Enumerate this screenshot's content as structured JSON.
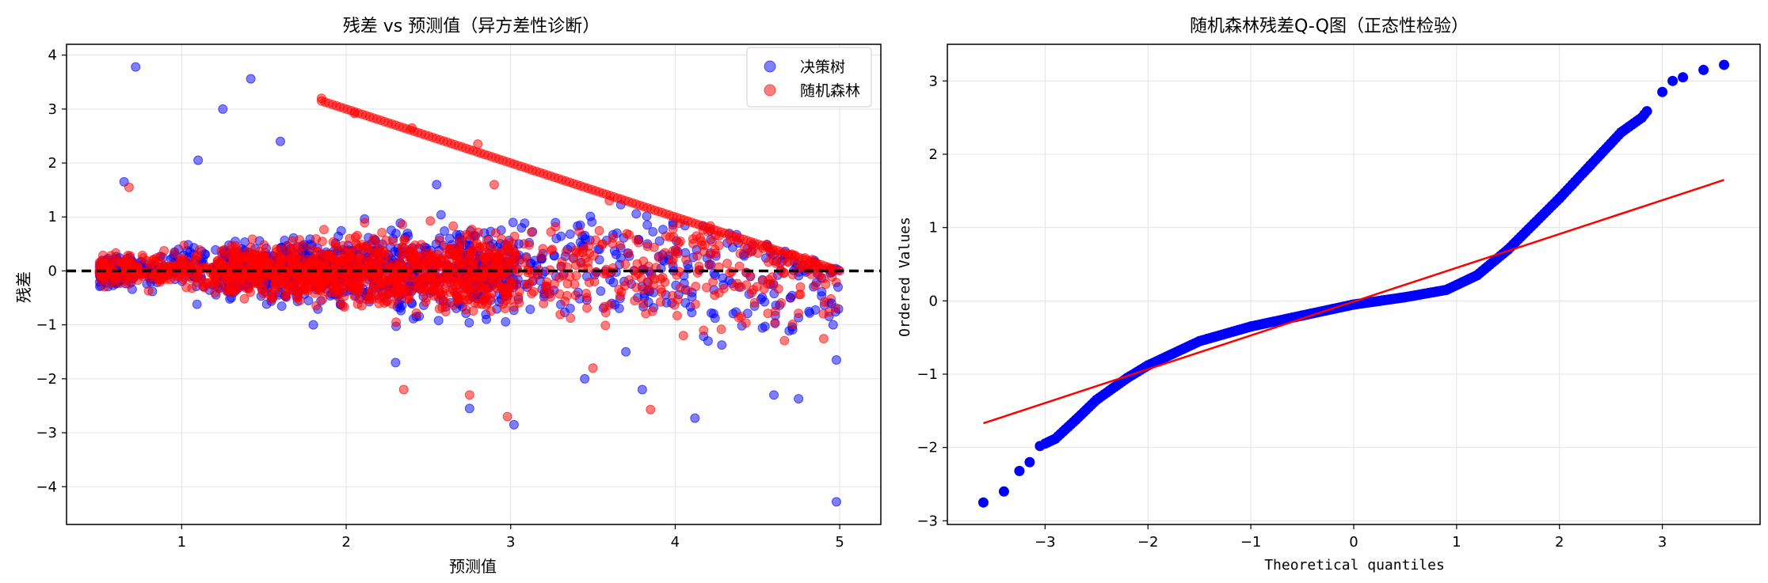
{
  "chart_data": [
    {
      "type": "scatter",
      "title": "残差 vs 预测值（异方差性诊断）",
      "xlabel": "预测值",
      "ylabel": "残差",
      "xlim": [
        0.3,
        5.25
      ],
      "ylim": [
        -4.7,
        4.2
      ],
      "x_ticks": [
        "1",
        "2",
        "3",
        "4",
        "5"
      ],
      "y_ticks": [
        "−4",
        "−3",
        "−2",
        "−1",
        "0",
        "1",
        "2",
        "3",
        "4"
      ],
      "grid": true,
      "reference_line": {
        "y": 0,
        "style": "dashed",
        "color": "#000000"
      },
      "legend_position": "top-right",
      "series": [
        {
          "name": "决策树",
          "color": "#0000ff",
          "points": [
            [
              0.72,
              3.78
            ],
            [
              1.42,
              3.56
            ],
            [
              1.25,
              3.0
            ],
            [
              1.6,
              2.4
            ],
            [
              1.1,
              2.05
            ],
            [
              2.55,
              1.6
            ],
            [
              0.65,
              1.65
            ],
            [
              3.05,
              0.5
            ],
            [
              2.3,
              -1.7
            ],
            [
              1.8,
              -1.0
            ],
            [
              3.02,
              -2.85
            ],
            [
              2.75,
              -2.55
            ],
            [
              3.45,
              -2.0
            ],
            [
              3.8,
              -2.2
            ],
            [
              4.12,
              -2.73
            ],
            [
              4.6,
              -2.3
            ],
            [
              4.75,
              -2.37
            ],
            [
              4.98,
              -4.28
            ],
            [
              4.98,
              -1.65
            ],
            [
              4.96,
              -1.0
            ],
            [
              4.99,
              -0.3
            ],
            [
              4.95,
              -0.6
            ],
            [
              4.7,
              -0.5
            ],
            [
              4.2,
              -1.3
            ],
            [
              3.7,
              -1.5
            ]
          ]
        },
        {
          "name": "随机森林",
          "color": "#ff0000",
          "points": [
            [
              1.85,
              3.2
            ],
            [
              2.05,
              2.92
            ],
            [
              2.4,
              2.65
            ],
            [
              2.8,
              2.35
            ],
            [
              0.68,
              1.55
            ],
            [
              2.35,
              -2.2
            ],
            [
              2.75,
              -2.3
            ],
            [
              2.98,
              -2.7
            ],
            [
              3.85,
              -2.57
            ],
            [
              4.05,
              -1.2
            ],
            [
              3.5,
              -1.8
            ],
            [
              1.7,
              -0.5
            ],
            [
              2.9,
              1.6
            ],
            [
              3.6,
              1.3
            ],
            [
              4.4,
              -0.3
            ]
          ]
        }
      ],
      "boundary_series": [
        {
          "name": "随机森林",
          "from": [
            1.85,
            3.2
          ],
          "to": [
            5.0,
            0.0
          ]
        }
      ]
    },
    {
      "type": "line",
      "subtype": "qq-plot",
      "title": "随机森林残差Q-Q图（正态性检验）",
      "xlabel": "Theoretical quantiles",
      "ylabel": "Ordered Values",
      "xlim": [
        -3.95,
        3.95
      ],
      "ylim": [
        -3.05,
        3.5
      ],
      "x_ticks": [
        "−3",
        "−2",
        "−1",
        "0",
        "1",
        "2",
        "3"
      ],
      "y_ticks": [
        "−3",
        "−2",
        "−1",
        "0",
        "1",
        "2",
        "3"
      ],
      "grid": true,
      "series": [
        {
          "name": "Ordered Values",
          "color": "#0000ff",
          "points": [
            [
              -3.6,
              -2.75
            ],
            [
              -3.4,
              -2.6
            ],
            [
              -3.25,
              -2.32
            ],
            [
              -3.15,
              -2.2
            ],
            [
              -3.05,
              -1.98
            ],
            [
              -2.9,
              -1.88
            ],
            [
              -2.7,
              -1.62
            ],
            [
              -2.5,
              -1.35
            ],
            [
              -2.2,
              -1.05
            ],
            [
              -2.0,
              -0.88
            ],
            [
              -1.5,
              -0.55
            ],
            [
              -1.0,
              -0.35
            ],
            [
              -0.5,
              -0.2
            ],
            [
              0.0,
              -0.05
            ],
            [
              0.5,
              0.05
            ],
            [
              0.9,
              0.15
            ],
            [
              1.2,
              0.35
            ],
            [
              1.5,
              0.7
            ],
            [
              1.75,
              1.05
            ],
            [
              2.0,
              1.4
            ],
            [
              2.3,
              1.85
            ],
            [
              2.6,
              2.3
            ],
            [
              2.8,
              2.5
            ],
            [
              3.0,
              2.85
            ],
            [
              3.1,
              3.0
            ],
            [
              3.2,
              3.05
            ],
            [
              3.4,
              3.15
            ],
            [
              3.6,
              3.22
            ]
          ]
        },
        {
          "name": "fit line",
          "color": "#ff0000",
          "points": [
            [
              -3.6,
              -1.67
            ],
            [
              3.6,
              1.65
            ]
          ]
        }
      ]
    }
  ]
}
